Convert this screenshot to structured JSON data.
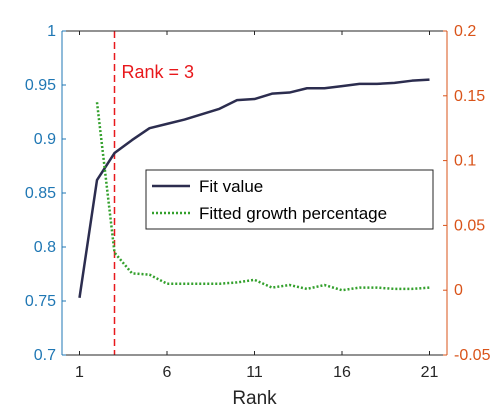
{
  "chart_data": {
    "type": "line",
    "title": "",
    "xlabel": "Rank",
    "ylabel_left": "",
    "ylabel_right": "",
    "x_ticks": [
      1,
      6,
      11,
      16,
      21
    ],
    "xlim": [
      0,
      22
    ],
    "ylim_left": [
      0.7,
      1.0
    ],
    "ylim_right": [
      -0.05,
      0.2
    ],
    "y_left_ticks": [
      0.7,
      0.75,
      0.8,
      0.85,
      0.9,
      0.95,
      1
    ],
    "y_left_tick_labels": [
      "0.7",
      "0.75",
      "0.8",
      "0.85",
      "0.9",
      "0.95",
      "1"
    ],
    "y_right_ticks": [
      -0.05,
      0,
      0.05,
      0.1,
      0.15,
      0.2
    ],
    "y_right_tick_labels": [
      "-0.05",
      "0",
      "0.05",
      "0.1",
      "0.15",
      "0.2"
    ],
    "grid": false,
    "legend_position": "center-right",
    "colors": {
      "fit": "#2c2d4f",
      "growth": "#33a02c",
      "left_axis": "#1f77b4",
      "right_axis": "#d95319",
      "annotation": "#e8181c",
      "axes": "#262626"
    },
    "series": [
      {
        "name": "Fit value",
        "axis": "left",
        "style": "solid",
        "x": [
          1,
          2,
          3,
          4,
          5,
          6,
          7,
          8,
          9,
          10,
          11,
          12,
          13,
          14,
          15,
          16,
          17,
          18,
          19,
          20,
          21
        ],
        "values": [
          0.753,
          0.862,
          0.887,
          0.899,
          0.91,
          0.914,
          0.918,
          0.923,
          0.928,
          0.936,
          0.937,
          0.942,
          0.943,
          0.947,
          0.947,
          0.949,
          0.951,
          0.951,
          0.952,
          0.954,
          0.955
        ]
      },
      {
        "name": "Fitted growth percentage",
        "axis": "right",
        "style": "dotted",
        "x": [
          2,
          3,
          4,
          5,
          6,
          7,
          8,
          9,
          10,
          11,
          12,
          13,
          14,
          15,
          16,
          17,
          18,
          19,
          20,
          21
        ],
        "values": [
          0.145,
          0.029,
          0.013,
          0.012,
          0.005,
          0.005,
          0.005,
          0.005,
          0.006,
          0.008,
          0.002,
          0.004,
          0.001,
          0.004,
          0.0,
          0.002,
          0.002,
          0.001,
          0.001,
          0.002
        ]
      }
    ],
    "annotations": [
      {
        "type": "vline",
        "x": 3,
        "label": "Rank = 3",
        "style": "dashed"
      }
    ]
  }
}
